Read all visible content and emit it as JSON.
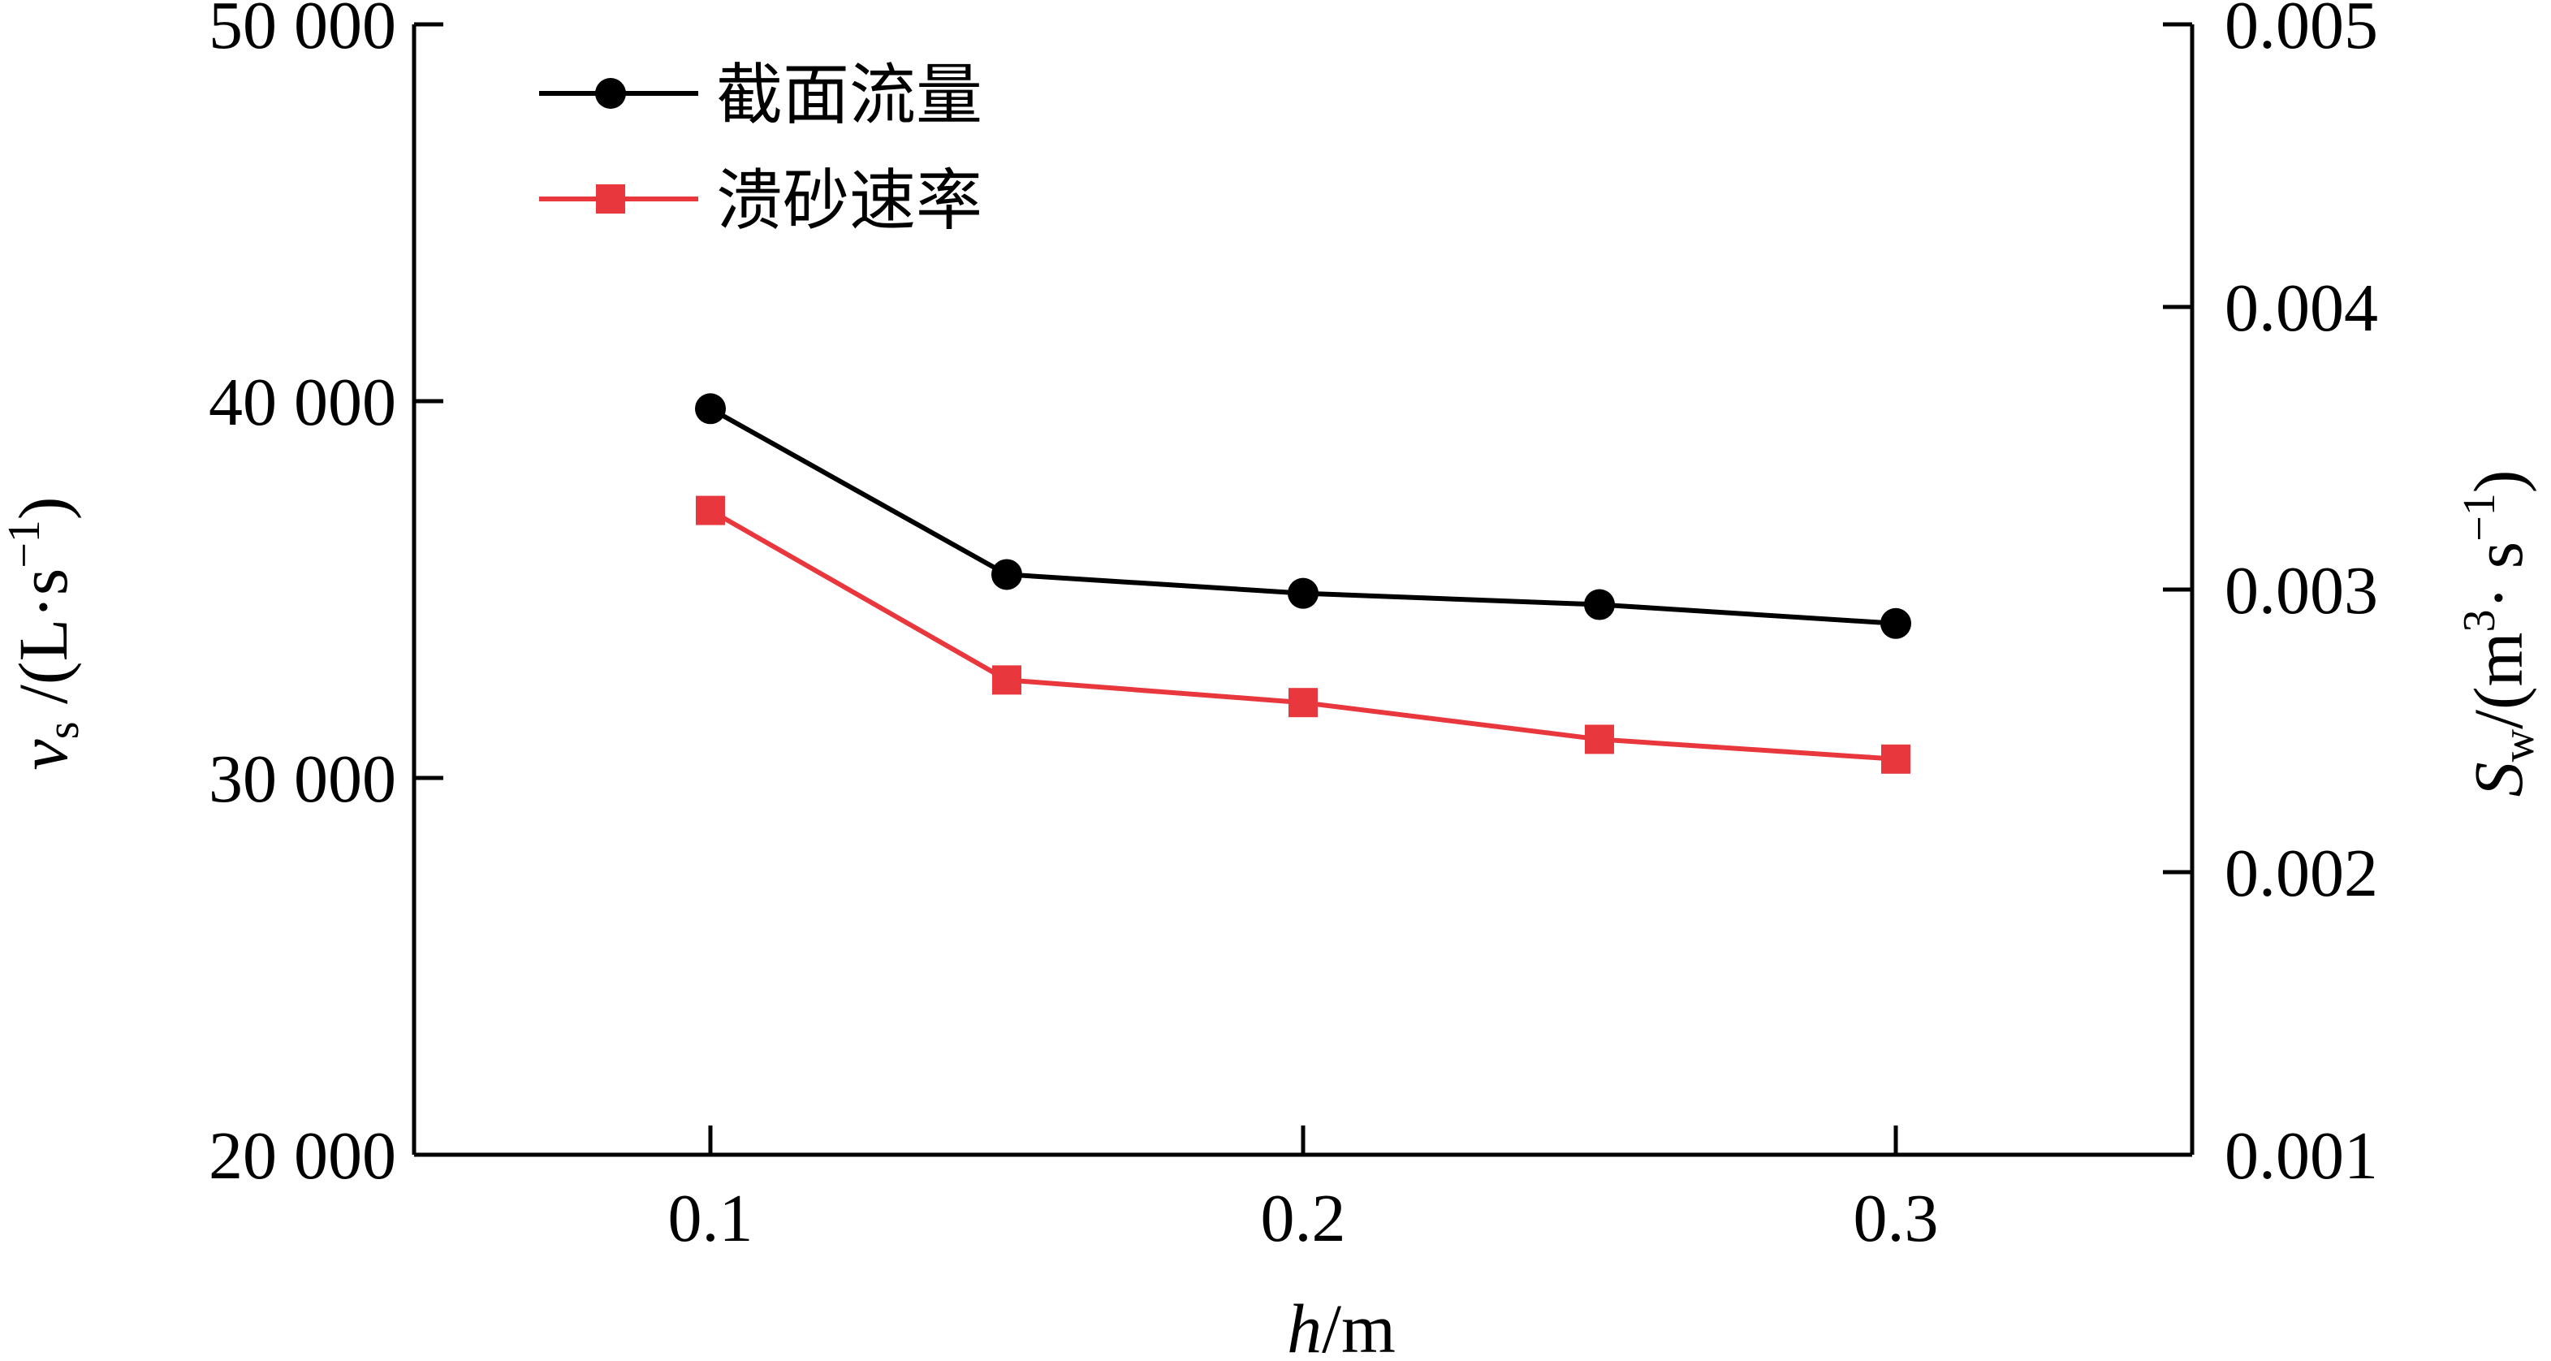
{
  "chart_data": {
    "type": "line",
    "x": [
      0.1,
      0.15,
      0.2,
      0.25,
      0.3
    ],
    "xlim": [
      0.05,
      0.35
    ],
    "xticks": [
      0.1,
      0.2,
      0.3
    ],
    "xtick_labels": [
      "0.1",
      "0.2",
      "0.3"
    ],
    "xlabel_main": "h",
    "xlabel_unit": "/m",
    "y_left": {
      "label_main": "v",
      "label_sub": "s",
      "label_unit": " /(L·s",
      "label_sup": "−1",
      "label_close": ")",
      "lim": [
        20000,
        50000
      ],
      "ticks": [
        20000,
        30000,
        40000,
        50000
      ],
      "tick_labels": [
        "20 000",
        "30 000",
        "40 000",
        "50 000"
      ]
    },
    "y_right": {
      "label_main": "S",
      "label_sub": "w",
      "label_unit": "/(m",
      "label_sup1": "3",
      "label_mid": "· s",
      "label_sup2": "−1",
      "label_close": ")",
      "lim": [
        0.001,
        0.005
      ],
      "ticks": [
        0.001,
        0.002,
        0.003,
        0.004,
        0.005
      ],
      "tick_labels": [
        "0.001",
        "0.002",
        "0.003",
        "0.004",
        "0.005"
      ]
    },
    "series": [
      {
        "name": "截面流量",
        "axis": "left",
        "marker": "circle",
        "color": "#000000",
        "values": [
          39800,
          35400,
          34900,
          34600,
          34100
        ]
      },
      {
        "name": "溃砂速率",
        "axis": "right",
        "marker": "square",
        "color": "#e8383d",
        "values": [
          0.00328,
          0.00268,
          0.0026,
          0.00247,
          0.0024
        ]
      }
    ],
    "grid": false,
    "legend": "top-left"
  }
}
